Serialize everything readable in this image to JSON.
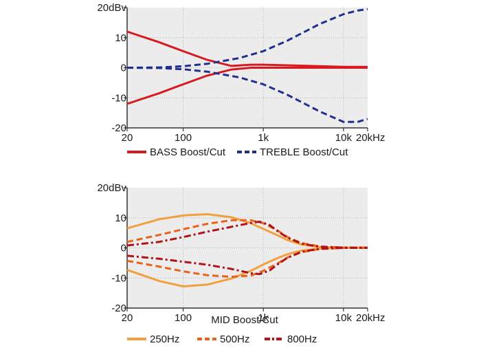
{
  "chart_data": [
    {
      "type": "line",
      "x_scale": "log",
      "xlim": [
        20,
        20000
      ],
      "ylim": [
        -20,
        20
      ],
      "grid": true,
      "x_ticks": [
        20,
        100,
        1000,
        10000,
        20000
      ],
      "x_tick_labels": [
        "20",
        "100",
        "1k",
        "10k",
        "20kHz"
      ],
      "y_ticks": [
        20,
        10,
        0,
        -10,
        -20
      ],
      "y_tick_labels": [
        "20dBv",
        "10",
        "0",
        "-10",
        "-20"
      ],
      "title": "",
      "legend_position": "bottom",
      "series": [
        {
          "name": "BASS Boost/Cut",
          "color": "#d71920",
          "style": "solid",
          "x": [
            20,
            50,
            100,
            200,
            400,
            700,
            1000,
            2000,
            5000,
            10000,
            20000
          ],
          "y": [
            12,
            8.5,
            5.5,
            2.6,
            0.6,
            1.0,
            1.0,
            0.8,
            0.5,
            0.3,
            0.3
          ]
        },
        {
          "name": "",
          "color": "#d71920",
          "style": "solid",
          "x": [
            20,
            50,
            100,
            200,
            400,
            700,
            1000,
            2000,
            5000,
            10000,
            20000
          ],
          "y": [
            -12,
            -8.5,
            -5.5,
            -2.6,
            -0.6,
            0.0,
            0.0,
            0.0,
            0.0,
            0.0,
            0.0
          ]
        },
        {
          "name": "TREBLE Boost/Cut",
          "color": "#1f2f8c",
          "style": "dashed",
          "x": [
            20,
            50,
            100,
            200,
            500,
            1000,
            2000,
            5000,
            10000,
            15000,
            20000
          ],
          "y": [
            0,
            0.1,
            0.5,
            1.3,
            3.2,
            5.5,
            9,
            14.5,
            17.8,
            19,
            19.5
          ]
        },
        {
          "name": "",
          "color": "#1f2f8c",
          "style": "dashed",
          "x": [
            20,
            50,
            100,
            200,
            500,
            1000,
            2000,
            5000,
            10000,
            15000,
            20000
          ],
          "y": [
            0,
            -0.1,
            -0.5,
            -1.3,
            -3.2,
            -5.5,
            -9,
            -14.5,
            -18,
            -18,
            -17
          ]
        }
      ],
      "legend": [
        {
          "label": "BASS Boost/Cut",
          "color": "#d71920",
          "style": "solid"
        },
        {
          "label": "TREBLE Boost/Cut",
          "color": "#1f2f8c",
          "style": "dashed"
        }
      ]
    },
    {
      "type": "line",
      "x_scale": "log",
      "xlim": [
        20,
        20000
      ],
      "ylim": [
        -20,
        20
      ],
      "grid": true,
      "x_ticks": [
        20,
        100,
        1000,
        10000,
        20000
      ],
      "x_tick_labels": [
        "20",
        "100",
        "1k",
        "10k",
        "20kHz"
      ],
      "y_ticks": [
        20,
        10,
        0,
        -10,
        -20
      ],
      "y_tick_labels": [
        "20dBv",
        "10",
        "0",
        "-10",
        "-20"
      ],
      "xlabel": "MID Boost/Cut",
      "legend_position": "bottom",
      "series": [
        {
          "name": "250Hz",
          "color": "#f2a03d",
          "style": "solid",
          "x": [
            20,
            50,
            100,
            200,
            400,
            700,
            1000,
            1500,
            2000,
            3000,
            5000,
            10000,
            20000
          ],
          "y": [
            6.5,
            9.5,
            10.8,
            11.2,
            10.2,
            8.2,
            6.3,
            4.2,
            2.6,
            1.1,
            0.3,
            0.1,
            0.1
          ]
        },
        {
          "name": "",
          "color": "#f2a03d",
          "style": "solid",
          "x": [
            20,
            50,
            100,
            200,
            400,
            700,
            1000,
            1500,
            2000,
            3000,
            5000,
            10000,
            20000
          ],
          "y": [
            -7.3,
            -11,
            -12.8,
            -12.2,
            -10.2,
            -7.6,
            -5.5,
            -3.4,
            -2.1,
            -0.9,
            -0.3,
            0,
            0
          ]
        },
        {
          "name": "500Hz",
          "color": "#e8621a",
          "style": "dashed",
          "x": [
            20,
            50,
            100,
            200,
            400,
            700,
            1000,
            1500,
            2000,
            3000,
            5000,
            10000,
            20000
          ],
          "y": [
            2,
            4.3,
            6.2,
            8,
            9.2,
            9.2,
            8.2,
            5.8,
            3.6,
            1.6,
            0.5,
            0.1,
            0.1
          ]
        },
        {
          "name": "",
          "color": "#e8621a",
          "style": "dashed",
          "x": [
            20,
            50,
            100,
            200,
            400,
            700,
            1000,
            1500,
            2000,
            3000,
            5000,
            10000,
            20000
          ],
          "y": [
            -4.3,
            -6.2,
            -7.8,
            -9.1,
            -9.6,
            -9.2,
            -7.6,
            -5.2,
            -3.2,
            -1.4,
            -0.4,
            0,
            0
          ]
        },
        {
          "name": "800Hz",
          "color": "#b0141a",
          "style": "dashdot",
          "x": [
            20,
            50,
            100,
            200,
            400,
            700,
            900,
            1200,
            1500,
            2000,
            3000,
            5000,
            10000,
            20000
          ],
          "y": [
            0.8,
            2,
            3.6,
            5.4,
            7,
            8.3,
            8.7,
            7.6,
            5.6,
            3.4,
            1.4,
            0.4,
            0.1,
            0.1
          ]
        },
        {
          "name": "",
          "color": "#b0141a",
          "style": "dashdot",
          "x": [
            20,
            50,
            100,
            200,
            400,
            700,
            900,
            1200,
            1500,
            2000,
            3000,
            5000,
            10000,
            20000
          ],
          "y": [
            -2.6,
            -3.6,
            -4.6,
            -5.6,
            -7,
            -8.4,
            -8.7,
            -7.5,
            -5.5,
            -3.3,
            -1.3,
            -0.3,
            0,
            0
          ]
        }
      ],
      "legend": [
        {
          "label": "250Hz",
          "color": "#f2a03d",
          "style": "solid"
        },
        {
          "label": "500Hz",
          "color": "#e8621a",
          "style": "dashed"
        },
        {
          "label": "800Hz",
          "color": "#b0141a",
          "style": "dashdot"
        }
      ]
    }
  ]
}
